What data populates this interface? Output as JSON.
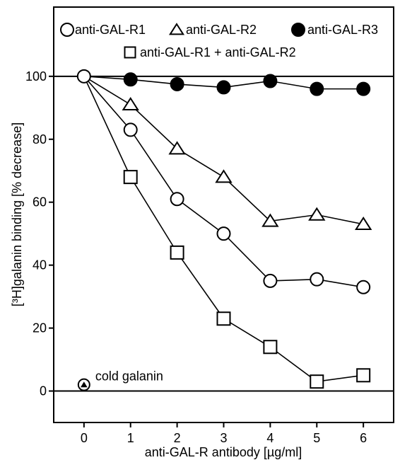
{
  "chart_data": {
    "type": "line",
    "title": "",
    "xlabel": "anti-GAL-R antibody [µg/ml]",
    "ylabel": "[³H]galanin binding [% decrease]",
    "xlim": [
      -0.65,
      6.65
    ],
    "ylim": [
      -10,
      122
    ],
    "x_ticks": [
      0,
      1,
      2,
      3,
      4,
      5,
      6
    ],
    "y_ticks": [
      0,
      20,
      40,
      60,
      80,
      100
    ],
    "reference_lines": [
      0,
      100
    ],
    "grid": false,
    "legend_position": "top",
    "series": [
      {
        "name": "anti-GAL-R1",
        "marker": "circle-open",
        "x": [
          0,
          1,
          2,
          3,
          4,
          5,
          6
        ],
        "y": [
          100,
          83,
          61,
          50,
          35,
          35.5,
          33
        ]
      },
      {
        "name": "anti-GAL-R2",
        "marker": "triangle-open",
        "x": [
          0,
          1,
          2,
          3,
          4,
          5,
          6
        ],
        "y": [
          100,
          91,
          77,
          68,
          54,
          56,
          53
        ]
      },
      {
        "name": "anti-GAL-R3",
        "marker": "circle-filled",
        "x": [
          0,
          1,
          2,
          3,
          4,
          5,
          6
        ],
        "y": [
          100,
          99,
          97.5,
          96.5,
          98.5,
          96,
          96
        ]
      },
      {
        "name": "anti-GAL-R1 + anti-GAL-R2",
        "marker": "square-open",
        "x": [
          0,
          1,
          2,
          3,
          4,
          5,
          6
        ],
        "y": [
          100,
          68,
          44,
          23,
          14,
          3,
          5
        ]
      }
    ],
    "annotations": [
      {
        "text": "cold galanin",
        "x": 0,
        "y": 2,
        "marker": "triangle-in-circle"
      }
    ]
  }
}
